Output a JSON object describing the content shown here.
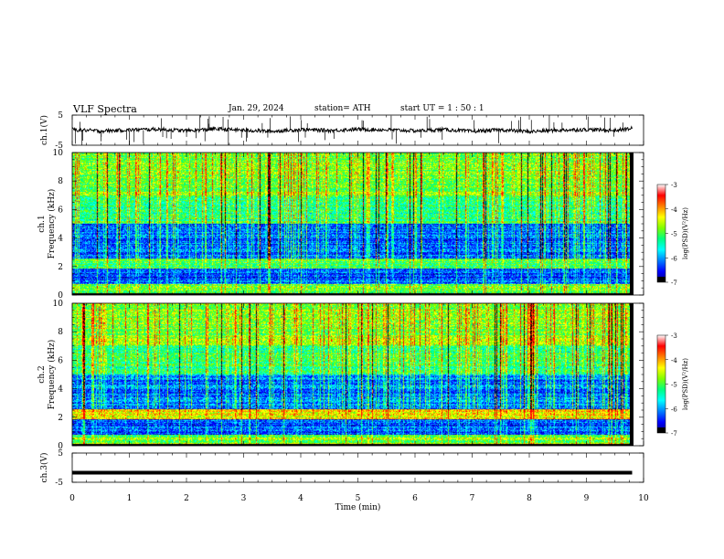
{
  "header": {
    "title": "VLF  Spectra",
    "date": "Jan. 29, 2024",
    "station": "station= ATH",
    "start": "start  UT  =   1 : 50 : 1"
  },
  "chart_data": [
    {
      "type": "line",
      "panel": "ch1_waveform",
      "ylabel": "ch.1(V)",
      "yticks": [
        "5",
        "-5"
      ],
      "ylim": [
        -5,
        5
      ],
      "x": [
        0.0,
        0.5,
        1.0,
        1.5,
        2.0,
        2.5,
        3.0,
        3.5,
        4.0,
        4.5,
        5.0,
        5.5,
        6.0,
        6.5,
        7.0,
        7.5,
        8.0,
        8.5,
        9.0,
        9.5,
        9.8
      ],
      "y": [
        0.2,
        -0.3,
        0.1,
        0.3,
        -0.2,
        0.4,
        0.0,
        -0.4,
        0.2,
        -0.1,
        0.3,
        0.1,
        -0.2,
        0.2,
        -0.4,
        0.1,
        -0.5,
        0.0,
        0.2,
        -0.1,
        0.6
      ]
    },
    {
      "type": "heatmap",
      "panel": "ch1_spectrogram",
      "ylabel_channel": "ch.1",
      "ylabel": "Frequency  (kHz)",
      "yticks": [
        "0",
        "2",
        "4",
        "6",
        "8",
        "10"
      ],
      "ylim": [
        0,
        10
      ],
      "colorbar_label": "log(PSD)(V²/Hz)",
      "colorbar_ticks": [
        "-3",
        "-4",
        "-5",
        "-6",
        "-7"
      ],
      "colorbar_range": [
        -7,
        -3
      ]
    },
    {
      "type": "heatmap",
      "panel": "ch2_spectrogram",
      "ylabel_channel": "ch.2",
      "ylabel": "Frequency  (kHz)",
      "yticks": [
        "0",
        "2",
        "4",
        "6",
        "8",
        "10"
      ],
      "ylim": [
        0,
        10
      ],
      "colorbar_label": "log(PSD)(V²/Hz)",
      "colorbar_ticks": [
        "-3",
        "-4",
        "-5",
        "-6",
        "-7"
      ],
      "colorbar_range": [
        -7,
        -3
      ]
    },
    {
      "type": "line",
      "panel": "ch3_waveform",
      "ylabel": "ch.3(V)",
      "yticks": [
        "5",
        "-5"
      ],
      "ylim": [
        -5,
        5
      ],
      "x": [
        0.0,
        9.8
      ],
      "y": [
        -1.7,
        -1.7
      ]
    }
  ],
  "xaxis": {
    "label": "Time  (min)",
    "ticks": [
      "0",
      "1",
      "2",
      "3",
      "4",
      "5",
      "6",
      "7",
      "8",
      "9",
      "10"
    ],
    "range": [
      0,
      10
    ]
  },
  "colors": {
    "spectrum": [
      "#00007a",
      "#0000ff",
      "#0080ff",
      "#00ffff",
      "#00ff80",
      "#80ff00",
      "#ffff00",
      "#ff8000",
      "#ff0000",
      "#ffffff"
    ],
    "trace": "#000000"
  }
}
